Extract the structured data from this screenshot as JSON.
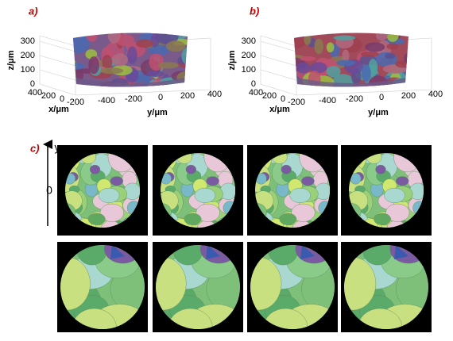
{
  "panels": {
    "a": {
      "label": "a)",
      "z_axis": {
        "label": "z/μm",
        "ticks": [
          "0",
          "100",
          "200",
          "300"
        ]
      },
      "x_axis": {
        "label": "x/μm",
        "ticks": [
          "400",
          "200",
          "0",
          "-200"
        ]
      },
      "y_axis": {
        "label": "y/μm",
        "ticks": [
          "-400",
          "-200",
          "0",
          "200",
          "400"
        ]
      }
    },
    "b": {
      "label": "b)",
      "z_axis": {
        "label": "z/μm",
        "ticks": [
          "0",
          "100",
          "200",
          "300"
        ]
      },
      "x_axis": {
        "label": "x/μm",
        "ticks": [
          "400",
          "200",
          "0",
          "-200"
        ]
      },
      "y_axis": {
        "label": "y/μm",
        "ticks": [
          "-400",
          "-200",
          "0",
          "200",
          "400"
        ]
      }
    },
    "c": {
      "label": "c)",
      "axis_label": "y",
      "tick": "0"
    }
  }
}
